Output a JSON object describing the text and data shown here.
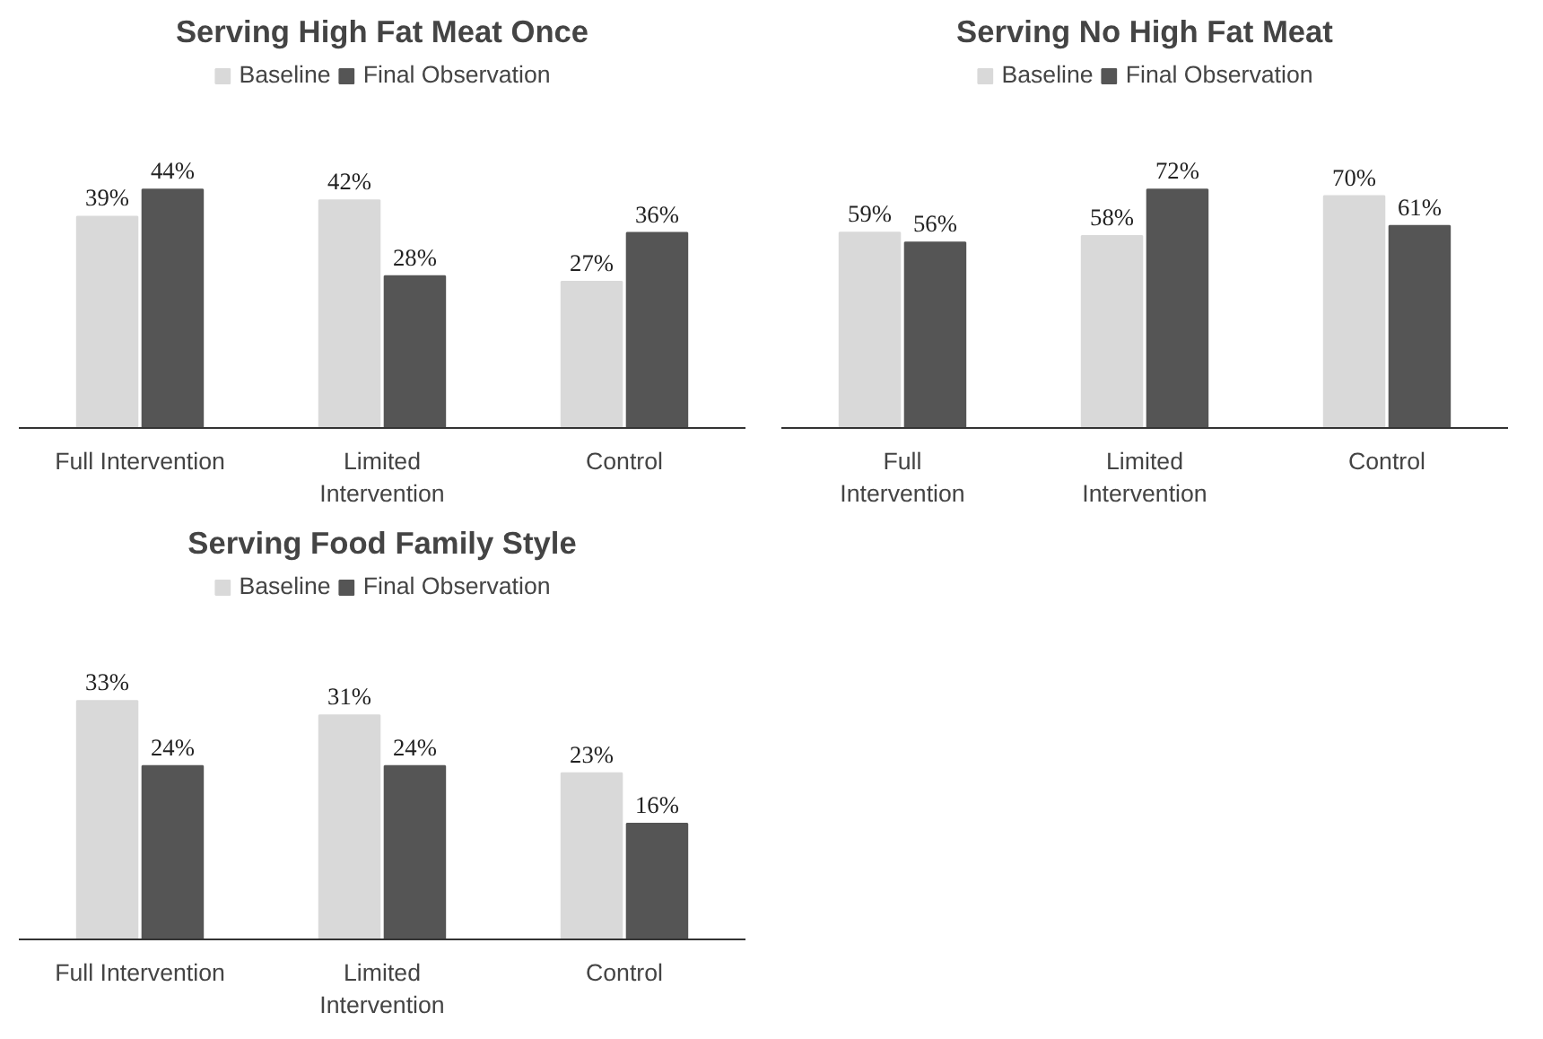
{
  "chart_data": [
    {
      "type": "bar",
      "title": "Serving High Fat Meat Once",
      "categories": [
        "Full Intervention",
        "Limited\nIntervention",
        "Control"
      ],
      "legend": "top",
      "series": [
        {
          "name": "Baseline",
          "color": "#d9d9d9",
          "values": [
            39,
            42,
            27
          ],
          "value_labels": [
            "39%",
            "42%",
            "27%"
          ]
        },
        {
          "name": "Final Observation",
          "color": "#555555",
          "values": [
            44,
            28,
            36
          ],
          "value_labels": [
            "44%",
            "28%",
            "36%"
          ]
        }
      ]
    },
    {
      "type": "bar",
      "title": "Serving No High Fat Meat",
      "categories": [
        "Full\nIntervention",
        "Limited\nIntervention",
        "Control"
      ],
      "legend": "top",
      "series": [
        {
          "name": "Baseline",
          "color": "#d9d9d9",
          "values": [
            59,
            58,
            70
          ],
          "value_labels": [
            "59%",
            "58%",
            "70%"
          ]
        },
        {
          "name": "Final Observation",
          "color": "#555555",
          "values": [
            56,
            72,
            61
          ],
          "value_labels": [
            "56%",
            "72%",
            "61%"
          ]
        }
      ]
    },
    {
      "type": "bar",
      "title": "Serving Food Family Style",
      "categories": [
        "Full Intervention",
        "Limited\nIntervention",
        "Control"
      ],
      "legend": "top",
      "series": [
        {
          "name": "Baseline",
          "color": "#d9d9d9",
          "values": [
            33,
            31,
            23
          ],
          "value_labels": [
            "33%",
            "31%",
            "23%"
          ]
        },
        {
          "name": "Final Observation",
          "color": "#555555",
          "values": [
            24,
            24,
            16
          ],
          "value_labels": [
            "24%",
            "24%",
            "16%"
          ]
        }
      ]
    }
  ]
}
